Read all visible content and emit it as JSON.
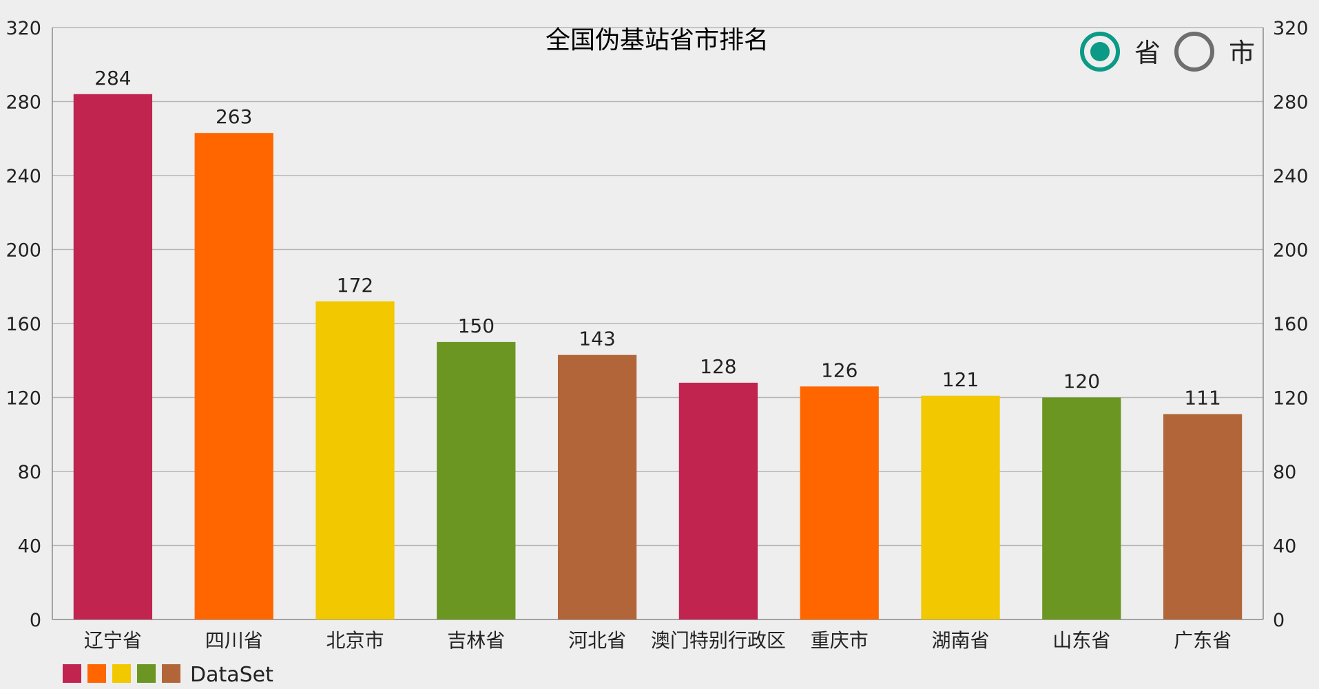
{
  "chart_data": {
    "type": "bar",
    "title": "全国伪基站省市排名",
    "categories": [
      "辽宁省",
      "四川省",
      "北京市",
      "吉林省",
      "河北省",
      "澳门特别行政区",
      "重庆市",
      "湖南省",
      "山东省",
      "广东省"
    ],
    "series": [
      {
        "name": "DataSet",
        "values": [
          284,
          263,
          172,
          150,
          143,
          128,
          126,
          121,
          120,
          111
        ]
      }
    ],
    "ylim": [
      0,
      320
    ],
    "yticks": [
      "0",
      "40",
      "80",
      "120",
      "160",
      "200",
      "240",
      "280",
      "320"
    ],
    "right_axis_mirror": true,
    "grid": true,
    "legend_position": "bottom-left",
    "palette": [
      "#c0244f",
      "#ff6600",
      "#f2c800",
      "#6a9621",
      "#b3653a"
    ]
  },
  "toggle": {
    "options": [
      {
        "label": "省",
        "selected": true
      },
      {
        "label": "市",
        "selected": false
      }
    ],
    "accent": "#0a9a86"
  },
  "legend": {
    "label": "DataSet"
  }
}
